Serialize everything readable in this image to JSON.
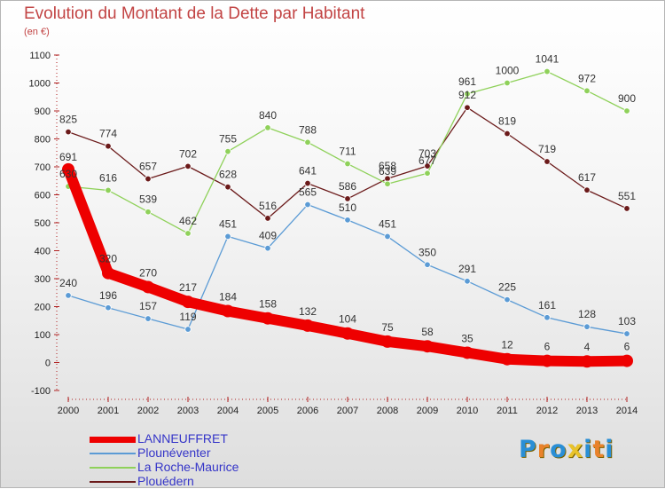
{
  "header": {
    "title": "Evolution du Montant de la Dette par Habitant",
    "subtitle": "(en €)"
  },
  "logo": {
    "text": "Proxiti",
    "letters": [
      "P",
      "r",
      "o",
      "x",
      "i",
      "t",
      "i"
    ],
    "colors": [
      "#2a8fd6",
      "#e9822a",
      "#2a8fd6",
      "#e9c32a",
      "#2a8fd6",
      "#e9822a",
      "#2a8fd6"
    ]
  },
  "chart_data": {
    "type": "line",
    "title": "Evolution du Montant de la Dette par Habitant",
    "subtitle": "(en €)",
    "x": [
      2000,
      2001,
      2002,
      2003,
      2004,
      2005,
      2006,
      2007,
      2008,
      2009,
      2010,
      2011,
      2012,
      2013,
      2014
    ],
    "ylim": [
      -100,
      1100
    ],
    "yticks": [
      -100,
      0,
      100,
      200,
      300,
      400,
      500,
      600,
      700,
      800,
      900,
      1000,
      1100
    ],
    "grid": false,
    "legend": "bottom-left",
    "series": [
      {
        "name": "LANNEUFFRET",
        "color": "#ee0000",
        "values": [
          691,
          320,
          270,
          217,
          184,
          158,
          132,
          104,
          75,
          58,
          35,
          12,
          6,
          4,
          6
        ]
      },
      {
        "name": "Plounéventer",
        "color": "#5b9bd5",
        "values": [
          240,
          196,
          157,
          119,
          451,
          409,
          565,
          510,
          451,
          350,
          291,
          225,
          161,
          128,
          103
        ]
      },
      {
        "name": "La Roche-Maurice",
        "color": "#8fd15a",
        "values": [
          630,
          616,
          539,
          462,
          755,
          840,
          788,
          711,
          639,
          677,
          961,
          1000,
          1041,
          972,
          900
        ]
      },
      {
        "name": "Plouédern",
        "color": "#6b1a1a",
        "values": [
          825,
          774,
          657,
          702,
          628,
          516,
          641,
          586,
          658,
          703,
          912,
          819,
          719,
          617,
          551
        ]
      }
    ]
  }
}
